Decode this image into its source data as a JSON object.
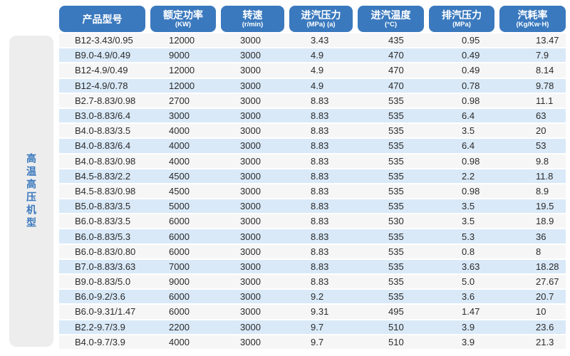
{
  "sidebar": {
    "label": "高温高压机型"
  },
  "table": {
    "columns": [
      {
        "key": "model",
        "label": "产品型号",
        "unit": ""
      },
      {
        "key": "rated-power",
        "label": "额定功率",
        "unit": "(KW)"
      },
      {
        "key": "speed",
        "label": "转速",
        "unit": "(r/min)"
      },
      {
        "key": "inlet-pressure",
        "label": "进汽压力",
        "unit": "(MPa) (a)"
      },
      {
        "key": "inlet-temp",
        "label": "进汽温度",
        "unit": "(°C)"
      },
      {
        "key": "exhaust-pressure",
        "label": "排汽压力",
        "unit": "(MPa)"
      },
      {
        "key": "steam-rate",
        "label": "汽耗率",
        "unit": "(Kg/Kw·H)"
      }
    ],
    "rows": [
      [
        "B12-3.43/0.95",
        "12000",
        "3000",
        "3.43",
        "435",
        "0.95",
        "13.47"
      ],
      [
        "B9.0-4.9/0.49",
        "9000",
        "3000",
        "4.9",
        "470",
        "0.49",
        "7.9"
      ],
      [
        "B12-4.9/0.49",
        "12000",
        "3000",
        "4.9",
        "470",
        "0.49",
        "8.14"
      ],
      [
        "B12-4.9/0.78",
        "12000",
        "3000",
        "4.9",
        "470",
        "0.78",
        "9.78"
      ],
      [
        "B2.7-8.83/0.98",
        "2700",
        "3000",
        "8.83",
        "535",
        "0.98",
        "11.1"
      ],
      [
        "B3.0-8.83/6.4",
        "3000",
        "3000",
        "8.83",
        "535",
        "6.4",
        "63"
      ],
      [
        "B4.0-8.83/3.5",
        "4000",
        "3000",
        "8.83",
        "535",
        "3.5",
        "20"
      ],
      [
        "B4.0-8.83/6.4",
        "4000",
        "3000",
        "8.83",
        "535",
        "6.4",
        "53"
      ],
      [
        "B4.0-8.83/0.98",
        "4000",
        "3000",
        "8.83",
        "535",
        "0.98",
        "9.8"
      ],
      [
        "B4.5-8.83/2.2",
        "4500",
        "3000",
        "8.83",
        "535",
        "2.2",
        "11.8"
      ],
      [
        "B4.5-8.83/0.98",
        "4500",
        "3000",
        "8.83",
        "535",
        "0.98",
        "8.9"
      ],
      [
        "B5.0-8.83/3.5",
        "5000",
        "3000",
        "8.83",
        "535",
        "3.5",
        "19.5"
      ],
      [
        "B6.0-8.83/3.5",
        "6000",
        "3000",
        "8.83",
        "530",
        "3.5",
        "18.9"
      ],
      [
        "B6.0-8.83/5.3",
        "6000",
        "3000",
        "8.83",
        "535",
        "5.3",
        "36"
      ],
      [
        "B6.0-8.83/0.80",
        "6000",
        "3000",
        "8.83",
        "535",
        "0.8",
        "8"
      ],
      [
        "B7.0-8.83/3.63",
        "7000",
        "3000",
        "8.83",
        "535",
        "3.63",
        "18.28"
      ],
      [
        "B9.0-8.83/5.0",
        "9000",
        "3000",
        "8.83",
        "535",
        "5.0",
        "27.67"
      ],
      [
        "B6.0-9.2/3.6",
        "6000",
        "3000",
        "9.2",
        "535",
        "3.6",
        "20.7"
      ],
      [
        "B6.0-9.31/1.47",
        "6000",
        "3000",
        "9.31",
        "495",
        "1.47",
        "10"
      ],
      [
        "B2.2-9.7/3.9",
        "2200",
        "3000",
        "9.7",
        "510",
        "3.9",
        "23.6"
      ],
      [
        "B4.0-9.7/3.9",
        "4000",
        "3000",
        "9.7",
        "510",
        "3.9",
        "21.3"
      ]
    ]
  },
  "colors": {
    "header_blue": "#3a79be",
    "stripe_blue": "#d9e9f8",
    "stripe_gray": "#f6f6f7",
    "sidebar_gray": "#ededee",
    "sidebar_text": "#3b79bd",
    "text_dark": "#2a2a2a"
  }
}
